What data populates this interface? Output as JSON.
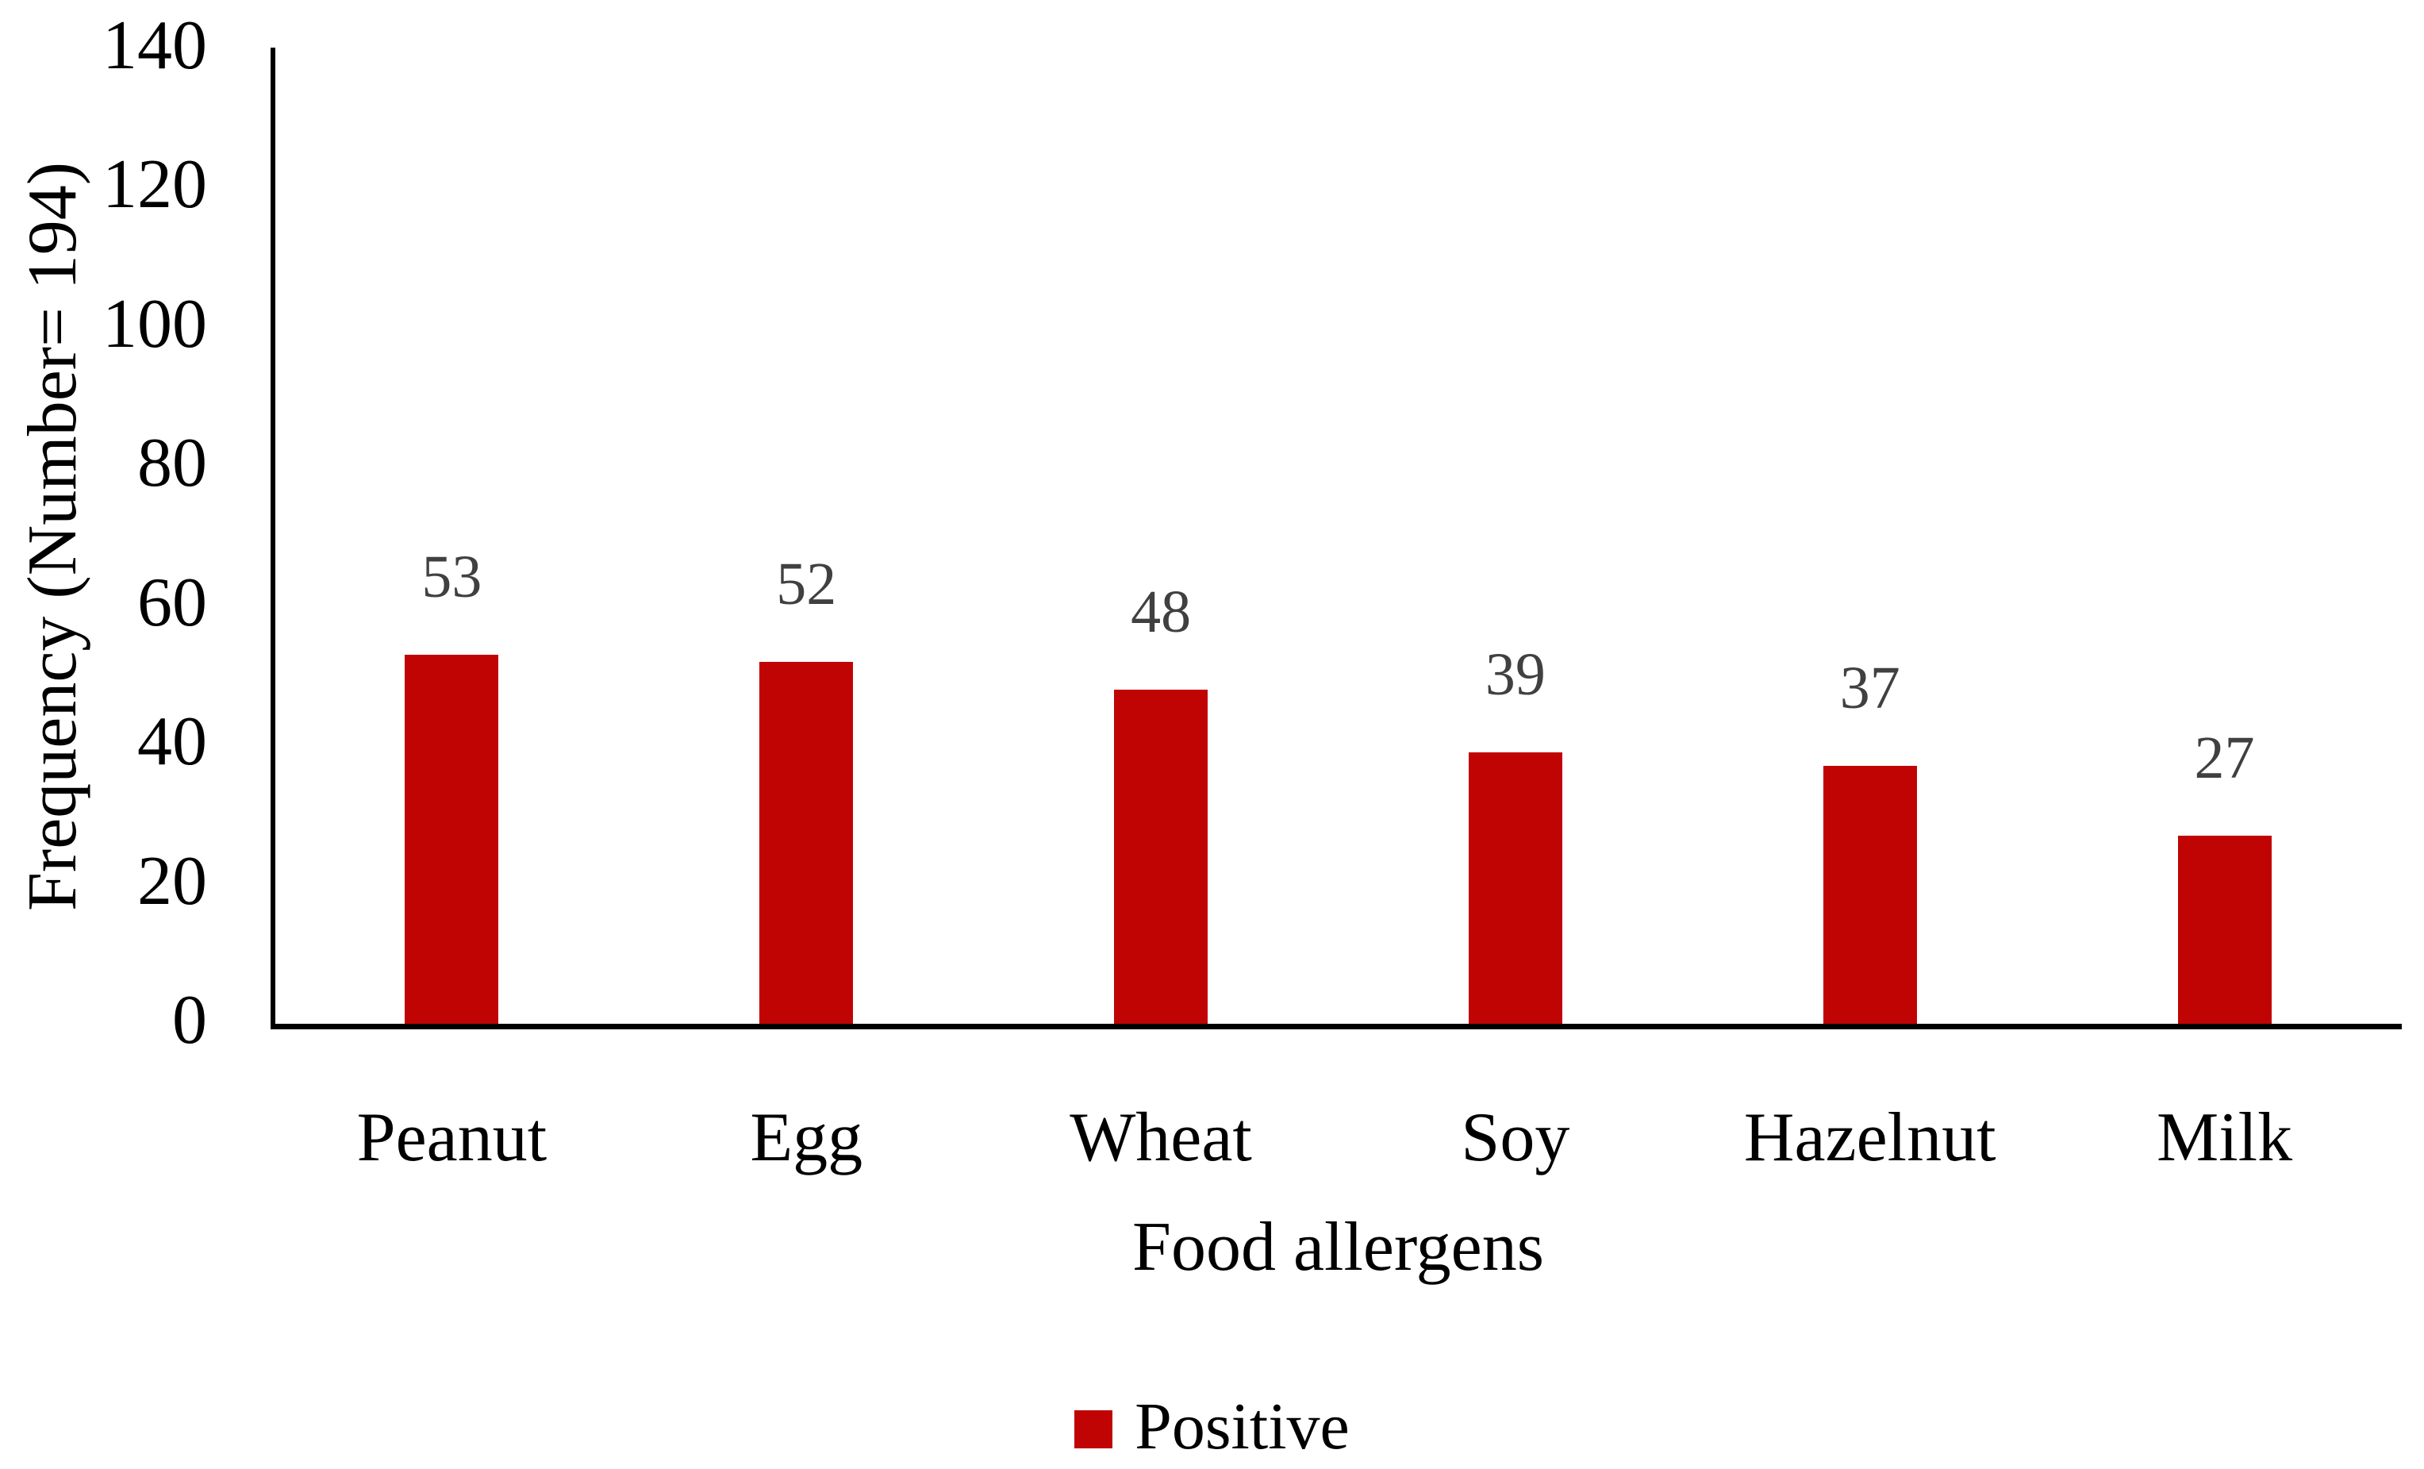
{
  "chart_data": {
    "type": "bar",
    "title": "",
    "categories": [
      "Peanut",
      "Egg",
      "Wheat",
      "Soy",
      "Hazelnut",
      "Milk"
    ],
    "series": [
      {
        "name": "Positive",
        "values": [
          53,
          52,
          48,
          39,
          37,
          27
        ]
      }
    ],
    "xlabel": "Food allergens",
    "ylabel": "Frequency (Number= 194)",
    "yticks": [
      0,
      20,
      40,
      60,
      80,
      100,
      120,
      140
    ],
    "ylim": [
      0,
      140
    ],
    "grid": false,
    "legend_position": "bottom",
    "colors": {
      "bar": "#c00404",
      "data_label": "#404040",
      "axis": "#000000"
    }
  }
}
